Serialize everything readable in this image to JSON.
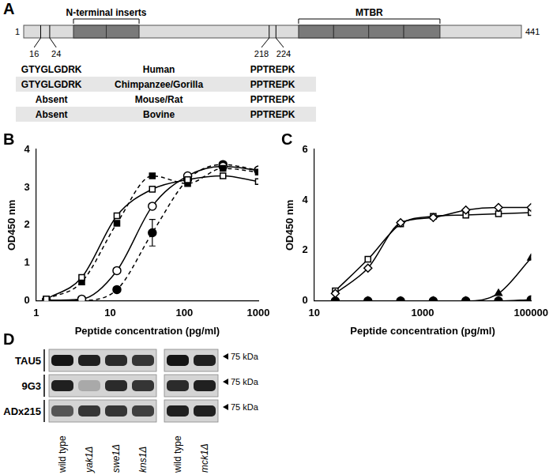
{
  "panel_a": {
    "panel": "A",
    "length_start": 1,
    "length_end": 441,
    "inserts_label": "N-terminal inserts",
    "inserts": [
      [
        45,
        74
      ],
      [
        74,
        103
      ]
    ],
    "mtbr_label": "MTBR",
    "mtbr": [
      [
        244,
        275
      ],
      [
        275,
        306
      ],
      [
        306,
        337
      ],
      [
        337,
        369
      ]
    ],
    "sites": [
      {
        "start": 16,
        "end": 24
      },
      {
        "start": 218,
        "end": 224
      }
    ],
    "rows": [
      {
        "left": "GTYGLGDRK",
        "species": "Human",
        "right": "PPTREPK"
      },
      {
        "left": "GTYGLGDRK",
        "species": "Chimpanzee/Gorilla",
        "right": "PPTREPK"
      },
      {
        "left": "Absent",
        "species": "Mouse/Rat",
        "right": "PPTREPK"
      },
      {
        "left": "Absent",
        "species": "Bovine",
        "right": "PPTREPK"
      }
    ]
  },
  "chart_data": [
    {
      "panel": "B",
      "type": "line",
      "x_label": "Peptide concentration (pg/ml)",
      "y_label": "OD450 nm",
      "log": "x",
      "grid": false,
      "xlim": [
        1,
        1000
      ],
      "xticks": [
        1,
        10,
        100,
        1000
      ],
      "ylim": [
        0,
        4
      ],
      "yticks": [
        0,
        1,
        2,
        3,
        4
      ],
      "x": [
        1.37,
        4.12,
        12.3,
        37,
        111,
        333,
        1000
      ],
      "series": [
        {
          "color": "#000000",
          "marker": "open-square",
          "line_style": "solid",
          "values": [
            0.05,
            0.62,
            2.25,
            2.95,
            3.2,
            3.3,
            3.15
          ]
        },
        {
          "color": "#000000",
          "marker": "filled-square",
          "line_style": "dashed",
          "values": [
            0.05,
            0.5,
            2.05,
            3.3,
            3.1,
            3.5,
            3.4
          ]
        },
        {
          "color": "#000000",
          "marker": "open-circle",
          "line_style": "solid",
          "values": [
            0.02,
            0.05,
            0.8,
            2.5,
            3.3,
            3.55,
            3.45
          ]
        },
        {
          "color": "#000000",
          "marker": "filled-circle",
          "line_style": "dashed",
          "values": [
            0.02,
            0.02,
            0.3,
            1.8,
            3.2,
            3.6,
            3.45
          ],
          "errors": [
            0,
            0,
            0,
            0.35,
            0,
            0,
            0
          ]
        }
      ]
    },
    {
      "panel": "C",
      "type": "line",
      "x_label": "Peptide concentration (pg/ml)",
      "y_label": "OD450 nm",
      "log": "x",
      "grid": false,
      "xlim": [
        10,
        100000
      ],
      "xticks": [
        10,
        1000,
        100000
      ],
      "ylim": [
        0,
        6
      ],
      "yticks": [
        0,
        2,
        4,
        6
      ],
      "x": [
        24.4,
        97.7,
        391,
        1563,
        6250,
        25000,
        100000
      ],
      "series": [
        {
          "color": "#000000",
          "marker": "open-diamond",
          "line_style": "solid",
          "values": [
            0.3,
            1.3,
            3.1,
            3.3,
            3.6,
            3.7,
            3.7
          ]
        },
        {
          "color": "#000000",
          "marker": "open-square",
          "line_style": "solid",
          "values": [
            0.4,
            1.65,
            3.05,
            3.35,
            3.4,
            3.45,
            3.5
          ]
        },
        {
          "color": "#000000",
          "marker": "filled-triangle",
          "line_style": "solid",
          "values": [
            0,
            0,
            0,
            0,
            0,
            0.3,
            1.7
          ]
        },
        {
          "color": "#000000",
          "marker": "filled-circle",
          "line_style": "solid",
          "values": [
            0,
            0,
            0,
            0,
            0,
            0,
            0.05
          ]
        }
      ]
    }
  ],
  "panel_d": {
    "panel": "D",
    "lanes": [
      "wild type",
      "yak1Δ",
      "swe1Δ",
      "kns1Δ",
      "wild type",
      "mck1Δ"
    ],
    "groups": [
      4,
      2
    ],
    "rows": [
      {
        "label": "TAU5",
        "marker_label": "75 kDa",
        "intensity": [
          0.9,
          0.85,
          0.8,
          0.75,
          0.9,
          0.85
        ]
      },
      {
        "label": "9G3",
        "marker_label": "75 kDa",
        "intensity": [
          0.85,
          0.2,
          0.8,
          0.75,
          0.8,
          0.85
        ]
      },
      {
        "label": "ADx215",
        "marker_label": "75 kDa",
        "intensity": [
          0.6,
          0.75,
          0.75,
          0.7,
          0.85,
          0.85
        ]
      }
    ]
  }
}
